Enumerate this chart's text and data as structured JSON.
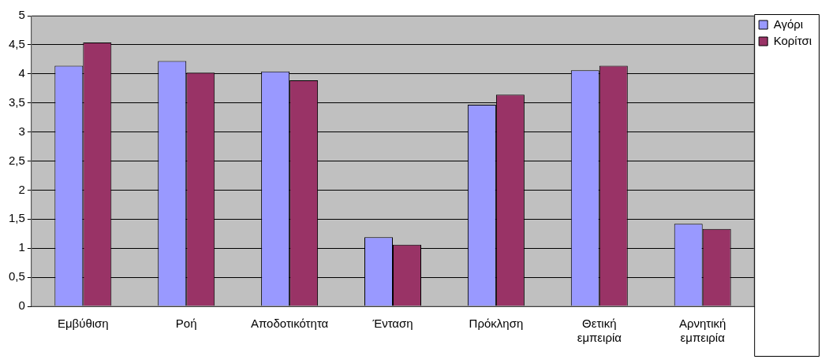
{
  "chart_data": {
    "type": "bar",
    "categories": [
      "Εμβύθιση",
      "Ροή",
      "Αποδοτικότητα",
      "Ένταση",
      "Πρόκληση",
      "Θετική εμπειρία",
      "Αρνητική εμπειρία"
    ],
    "series": [
      {
        "name": "Αγόρι",
        "color": "#9999ff",
        "values": [
          4.14,
          4.22,
          4.04,
          1.19,
          3.47,
          4.06,
          1.42
        ]
      },
      {
        "name": "Κορίτσι",
        "color": "#993366",
        "values": [
          4.54,
          4.02,
          3.89,
          1.06,
          3.64,
          4.14,
          1.33
        ]
      }
    ],
    "ylim": [
      0,
      5
    ],
    "yticks": [
      0,
      {
        "value": 0.5,
        "label": "0,5"
      },
      1,
      {
        "value": 1.5,
        "label": "1,5"
      },
      2,
      {
        "value": 2.5,
        "label": "2,5"
      },
      3,
      {
        "value": 3.5,
        "label": "3,5"
      },
      4,
      {
        "value": 4.5,
        "label": "4,5"
      },
      5
    ],
    "grid": "y",
    "legend": "right"
  }
}
